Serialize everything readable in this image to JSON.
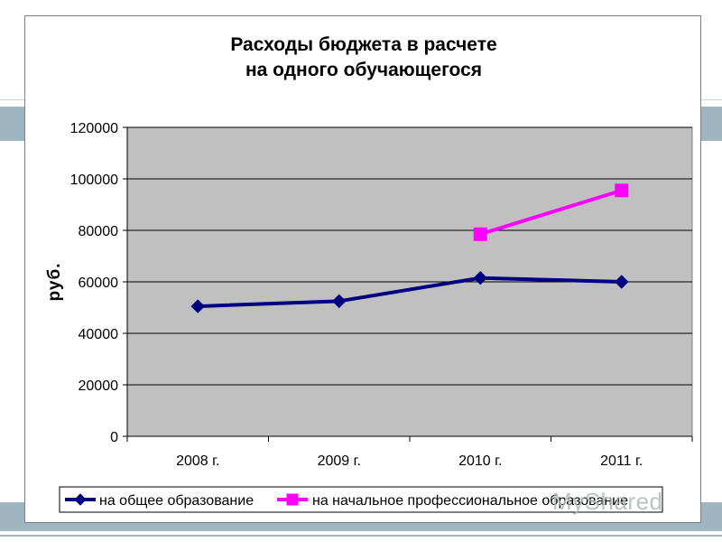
{
  "chart_data": {
    "type": "line",
    "title": "Расходы бюджета в расчете на одного обучающегося",
    "title_lines": [
      "Расходы бюджета в расчете",
      "на одного обучающегося"
    ],
    "ylabel": "руб.",
    "xlabel": "",
    "categories": [
      "2008 г.",
      "2009 г.",
      "2010 г.",
      "2011 г."
    ],
    "ylim": [
      0,
      120000
    ],
    "yticks": [
      0,
      20000,
      40000,
      60000,
      80000,
      100000,
      120000
    ],
    "grid": true,
    "legend_position": "bottom",
    "series": [
      {
        "name": "на общее образование",
        "color": "#000080",
        "marker": "diamond",
        "values": [
          50500,
          52500,
          61500,
          60000
        ]
      },
      {
        "name": "на начальное профессиональное образование",
        "color": "#ff00ff",
        "marker": "square",
        "values": [
          null,
          null,
          78500,
          95500
        ]
      }
    ]
  },
  "watermark": "MyShared"
}
